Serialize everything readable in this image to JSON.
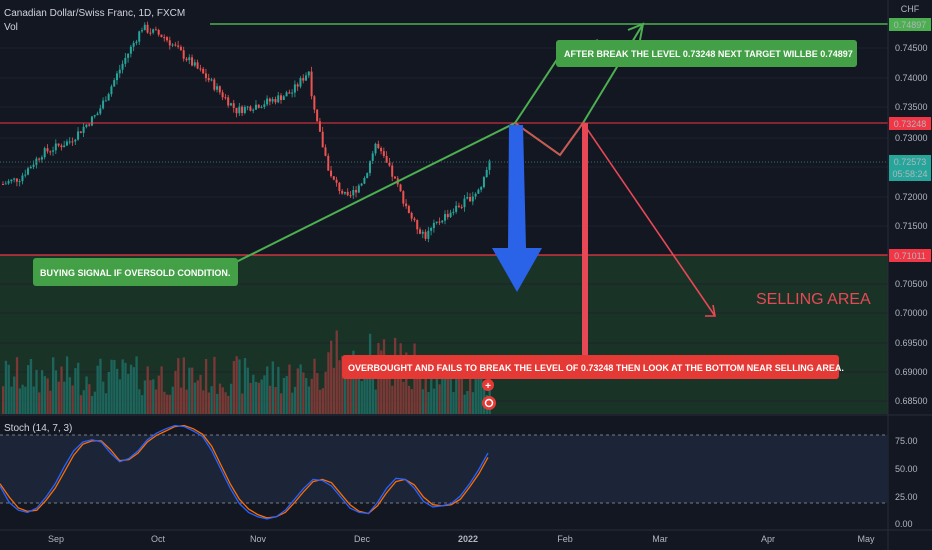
{
  "header": {
    "symbol": "Canadian Dollar/Swiss Franc, 1D, FXCM",
    "volume_label": "Vol",
    "currency": "CHF"
  },
  "chart_data": {
    "type": "candlestick",
    "price_axis": {
      "ticks": [
        "0.74500",
        "0.74000",
        "0.73500",
        "0.73000",
        "0.72500",
        "0.72000",
        "0.71500",
        "0.71000",
        "0.70500",
        "0.70000",
        "0.69500",
        "0.69000",
        "0.68500"
      ],
      "ylim": [
        0.684,
        0.7515
      ]
    },
    "x_axis": {
      "ticks": [
        "Sep",
        "Oct",
        "Nov",
        "Dec",
        "2022",
        "Feb",
        "Mar",
        "Apr",
        "May"
      ]
    },
    "levels": [
      {
        "label": "0.74897",
        "value": 0.74897,
        "color": "#4caf50"
      },
      {
        "label": "0.73248",
        "value": 0.73248,
        "color": "#f23645"
      },
      {
        "label": "0.71011",
        "value": 0.71011,
        "color": "#f23645"
      }
    ],
    "last_price": {
      "price": "0.72573",
      "countdown": "05:58:24",
      "value": 0.72573
    },
    "zones": {
      "selling_area_label": "SELLING AREA"
    },
    "annotations": {
      "buy": "BUYING SIGNAL IF OVERSOLD CONDITION.",
      "target": "AFTER BREAK THE LEVEL 0.73248 NEXT TARGET WILLBE 0.74897",
      "sell": "OVERBOUGHT AND FAILS TO BREAK THE LEVEL OF 0.73248 THEN LOOK AT THE BOTTOM NEAR SELLING AREA."
    },
    "stochastic": {
      "label": "Stoch (14, 7, 3)",
      "ticks": [
        "75.00",
        "50.00",
        "25.00",
        "0.00"
      ],
      "ylim": [
        0,
        100
      ],
      "upper_band": 80,
      "lower_band": 20,
      "k": [
        40,
        25,
        18,
        16,
        20,
        30,
        42,
        58,
        72,
        80,
        82,
        80,
        70,
        62,
        65,
        72,
        82,
        88,
        92,
        95,
        94,
        90,
        85,
        72,
        55,
        38,
        24,
        16,
        12,
        10,
        12,
        18,
        28,
        38,
        46,
        45,
        40,
        30,
        20,
        16,
        15,
        25,
        38,
        47,
        46,
        38,
        26,
        21,
        22,
        24,
        31,
        42,
        55,
        70
      ],
      "d": [
        42,
        30,
        20,
        17,
        18,
        27,
        38,
        53,
        68,
        78,
        81,
        81,
        73,
        63,
        64,
        70,
        80,
        86,
        90,
        94,
        95,
        92,
        87,
        76,
        59,
        42,
        28,
        19,
        14,
        11,
        12,
        16,
        25,
        35,
        44,
        46,
        43,
        33,
        23,
        17,
        15,
        22,
        34,
        44,
        46,
        41,
        30,
        23,
        22,
        23,
        28,
        39,
        51,
        66
      ]
    },
    "colors": {
      "up": "#26a69a",
      "down": "#ef5350",
      "stoch_k": "#2962ff",
      "stoch_d": "#ff6d00"
    }
  }
}
